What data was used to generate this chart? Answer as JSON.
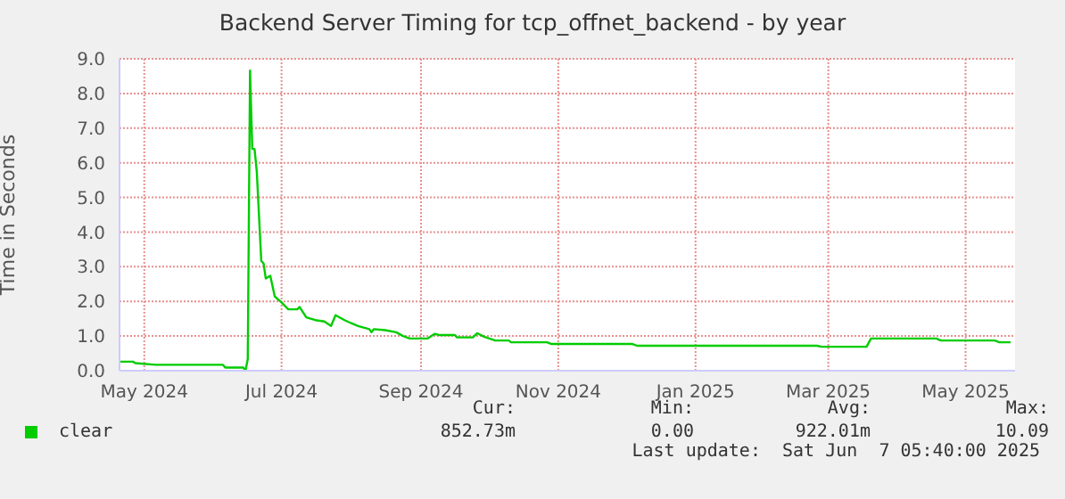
{
  "chart_data": {
    "type": "line",
    "title": "Backend Server Timing for tcp_offnet_backend - by year",
    "ylabel": "Time in Seconds",
    "xlim": [
      "2024-05-04",
      "2025-06-06"
    ],
    "xticks": [
      {
        "value": "2024-05-15",
        "label": "May 2024"
      },
      {
        "value": "2024-07-15",
        "label": "Jul 2024"
      },
      {
        "value": "2024-09-15",
        "label": "Sep 2024"
      },
      {
        "value": "2024-11-15",
        "label": "Nov 2024"
      },
      {
        "value": "2025-01-15",
        "label": "Jan 2025"
      },
      {
        "value": "2025-03-15",
        "label": "Mar 2025"
      },
      {
        "value": "2025-05-15",
        "label": "May 2025"
      }
    ],
    "ylim": [
      0,
      9
    ],
    "yticks": [
      {
        "value": 0,
        "label": "0.0"
      },
      {
        "value": 1,
        "label": "1.0"
      },
      {
        "value": 2,
        "label": "2.0"
      },
      {
        "value": 3,
        "label": "3.0"
      },
      {
        "value": 4,
        "label": "4.0"
      },
      {
        "value": 5,
        "label": "5.0"
      },
      {
        "value": 6,
        "label": "6.0"
      },
      {
        "value": 7,
        "label": "7.0"
      },
      {
        "value": 8,
        "label": "8.0"
      },
      {
        "value": 9,
        "label": "9.0"
      }
    ],
    "x": [
      "2024-05-04",
      "2024-05-10",
      "2024-05-11",
      "2024-05-20",
      "2024-06-19",
      "2024-06-20",
      "2024-06-28",
      "2024-06-29",
      "2024-06-30",
      "2024-07-01",
      "2024-07-02",
      "2024-07-03",
      "2024-07-04",
      "2024-07-06",
      "2024-07-07",
      "2024-07-08",
      "2024-07-10",
      "2024-07-12",
      "2024-07-15",
      "2024-07-18",
      "2024-07-22",
      "2024-07-23",
      "2024-07-26",
      "2024-07-30",
      "2024-08-03",
      "2024-08-06",
      "2024-08-08",
      "2024-08-12",
      "2024-08-15",
      "2024-08-18",
      "2024-08-23",
      "2024-08-24",
      "2024-08-25",
      "2024-08-30",
      "2024-09-04",
      "2024-09-07",
      "2024-09-10",
      "2024-09-18",
      "2024-09-21",
      "2024-09-23",
      "2024-09-30",
      "2024-10-01",
      "2024-10-08",
      "2024-10-10",
      "2024-10-13",
      "2024-10-18",
      "2024-10-24",
      "2024-10-25",
      "2024-11-10",
      "2024-11-12",
      "2024-12-18",
      "2024-12-20",
      "2025-03-10",
      "2025-03-12",
      "2025-04-01",
      "2025-04-03",
      "2025-05-02",
      "2025-05-04",
      "2025-05-28",
      "2025-05-30",
      "2025-06-04"
    ],
    "series": [
      {
        "name": "clear",
        "color": "#00cc00",
        "values": [
          0.26,
          0.26,
          0.22,
          0.17,
          0.17,
          0.09,
          0.09,
          0.0,
          0.34,
          8.66,
          6.4,
          6.4,
          5.75,
          3.17,
          3.1,
          2.66,
          2.74,
          2.14,
          1.97,
          1.77,
          1.77,
          1.84,
          1.54,
          1.46,
          1.42,
          1.29,
          1.6,
          1.46,
          1.37,
          1.29,
          1.2,
          1.11,
          1.2,
          1.17,
          1.11,
          1.0,
          0.93,
          0.93,
          1.06,
          1.03,
          1.03,
          0.96,
          0.96,
          1.08,
          0.98,
          0.87,
          0.87,
          0.82,
          0.82,
          0.77,
          0.77,
          0.72,
          0.72,
          0.69,
          0.69,
          0.93,
          0.93,
          0.87,
          0.87,
          0.82,
          0.82
        ]
      }
    ],
    "annotations": [
      "Cur:",
      "Min:",
      "Avg:",
      "Max:",
      "852.73m",
      "0.00",
      "922.01m",
      "10.09",
      "Last update:  Sat Jun  7 05:40:00 2025"
    ],
    "grid": true,
    "legend": "bottom left",
    "marker": "none",
    "line_style": "solid"
  }
}
